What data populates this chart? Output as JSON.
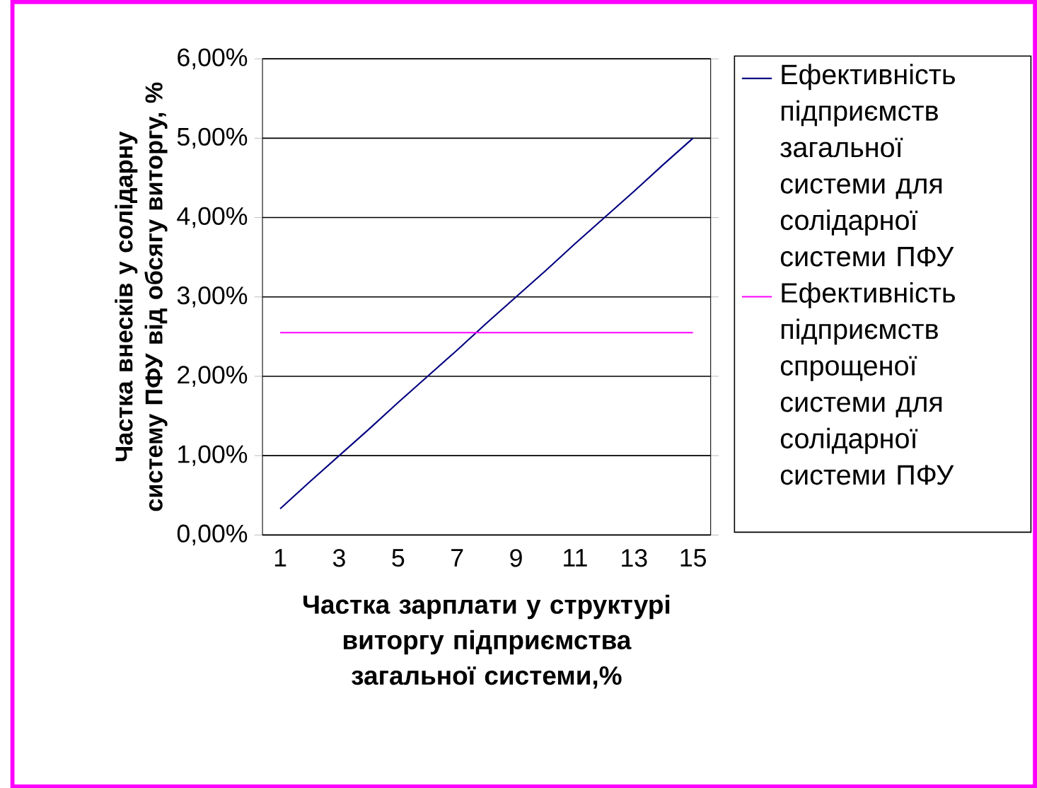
{
  "chart_data": {
    "type": "line",
    "xlabel": "Частка зарплати у структурі виторгу підприємства загальної системи,%",
    "ylabel": "Частка внесків у солідарну систему ПФУ від обсягу виторгу, %",
    "categories": [
      "1",
      null,
      "3",
      null,
      "5",
      null,
      "7",
      null,
      "9",
      null,
      "11",
      null,
      "13",
      null,
      "15"
    ],
    "series": [
      {
        "name": "Ефективність підприємств загальної системи для солідарної системи ПФУ",
        "color": "#000080",
        "values": [
          0.33,
          0.67,
          1.0,
          1.33,
          1.67,
          2.0,
          2.33,
          2.67,
          3.0,
          3.33,
          3.67,
          4.0,
          4.33,
          4.67,
          5.0
        ]
      },
      {
        "name": "Ефективність підприємств спрощеної системи для солідарної системи ПФУ",
        "color": "#ff00ff",
        "values": [
          2.55,
          2.55,
          2.55,
          2.55,
          2.55,
          2.55,
          2.55,
          2.55,
          2.55,
          2.55,
          2.55,
          2.55,
          2.55,
          2.55,
          2.55
        ]
      }
    ],
    "ylim": [
      0,
      6
    ],
    "yticks": [
      {
        "value": 0,
        "label": "0,00%"
      },
      {
        "value": 1,
        "label": "1,00%"
      },
      {
        "value": 2,
        "label": "2,00%"
      },
      {
        "value": 3,
        "label": "3,00%"
      },
      {
        "value": 4,
        "label": "4,00%"
      },
      {
        "value": 5,
        "label": "5,00%"
      },
      {
        "value": 6,
        "label": "6,00%"
      }
    ],
    "grid": "y",
    "legend": "right"
  }
}
